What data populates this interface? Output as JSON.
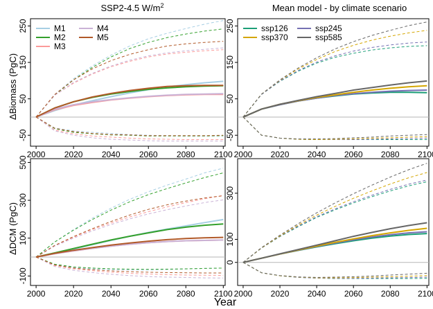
{
  "chart_data": [
    {
      "type": "line",
      "panel": "top-left",
      "title": "SSP2-4.5 W/m",
      "title_superscript": "2",
      "ylabel": "ΔBiomass (PgC)",
      "xlabel": "",
      "xlim": [
        1997,
        2101
      ],
      "ylim": [
        -80,
        270
      ],
      "xticks": [
        2000,
        2020,
        2040,
        2060,
        2080,
        2100
      ],
      "yticks": [
        -50,
        50,
        150,
        250
      ],
      "grid": false,
      "legend": "top-left, two columns",
      "x": [
        2000,
        2010,
        2020,
        2030,
        2040,
        2050,
        2060,
        2070,
        2080,
        2090,
        2100
      ],
      "series": [
        {
          "name": "M1",
          "color": "#a6cee3",
          "values": [
            0,
            18,
            33,
            45,
            56,
            66,
            75,
            83,
            89,
            94,
            98
          ],
          "upper": [
            0,
            62,
            105,
            140,
            170,
            195,
            215,
            230,
            243,
            255,
            265
          ],
          "lower": [
            0,
            -30,
            -38,
            -42,
            -45,
            -48,
            -50,
            -51,
            -52,
            -52,
            -52
          ]
        },
        {
          "name": "M2",
          "color": "#33a02c",
          "values": [
            0,
            25,
            42,
            54,
            63,
            70,
            76,
            80,
            83,
            85,
            86
          ],
          "upper": [
            0,
            60,
            102,
            136,
            165,
            188,
            205,
            218,
            228,
            236,
            242
          ],
          "lower": [
            0,
            -32,
            -42,
            -46,
            -49,
            -50,
            -52,
            -52,
            -52,
            -52,
            -51
          ]
        },
        {
          "name": "M3",
          "color": "#fb9a99",
          "values": [
            0,
            20,
            32,
            40,
            47,
            52,
            56,
            59,
            61,
            62,
            62
          ],
          "upper": [
            0,
            60,
            93,
            118,
            138,
            153,
            165,
            173,
            178,
            182,
            185
          ],
          "lower": [
            0,
            -36,
            -46,
            -52,
            -55,
            -58,
            -60,
            -61,
            -62,
            -62,
            -62
          ]
        },
        {
          "name": "M4",
          "color": "#cab2d6",
          "values": [
            0,
            22,
            34,
            42,
            48,
            53,
            57,
            60,
            62,
            63,
            64
          ],
          "upper": [
            0,
            60,
            95,
            120,
            140,
            156,
            168,
            176,
            182,
            186,
            190
          ],
          "lower": [
            0,
            -38,
            -50,
            -57,
            -61,
            -63,
            -65,
            -66,
            -66,
            -66,
            -66
          ]
        },
        {
          "name": "M5",
          "color": "#b15928",
          "values": [
            0,
            25,
            42,
            55,
            65,
            73,
            79,
            84,
            86,
            87,
            87
          ],
          "upper": [
            0,
            62,
            102,
            132,
            155,
            172,
            185,
            195,
            201,
            205,
            208
          ],
          "lower": [
            0,
            -31,
            -40,
            -45,
            -48,
            -49,
            -51,
            -51,
            -51,
            -51,
            -50
          ]
        }
      ]
    },
    {
      "type": "line",
      "panel": "top-right",
      "title": "Mean model - by climate scenario",
      "ylabel": "",
      "xlim": [
        1997,
        2101
      ],
      "ylim": [
        -80,
        270
      ],
      "xticks": [
        2000,
        2020,
        2040,
        2060,
        2080,
        2100
      ],
      "yticks": [
        -50,
        50,
        150,
        250
      ],
      "grid": false,
      "legend": "top-left, two columns",
      "x": [
        2000,
        2010,
        2020,
        2030,
        2040,
        2050,
        2060,
        2070,
        2080,
        2090,
        2100
      ],
      "series": [
        {
          "name": "ssp126",
          "color": "#1b9e77",
          "values": [
            0,
            22,
            34,
            44,
            52,
            58,
            63,
            66,
            68,
            68,
            67
          ],
          "upper": [
            0,
            62,
            98,
            126,
            148,
            164,
            175,
            184,
            190,
            194,
            196
          ],
          "lower": [
            0,
            -50,
            -58,
            -61,
            -62,
            -62,
            -62,
            -62,
            -62,
            -62,
            -62
          ]
        },
        {
          "name": "ssp245",
          "color": "#7570b3",
          "values": [
            0,
            22,
            34,
            44,
            52,
            59,
            64,
            68,
            71,
            73,
            74
          ],
          "upper": [
            0,
            62,
            99,
            128,
            151,
            168,
            181,
            191,
            198,
            203,
            206
          ],
          "lower": [
            0,
            -50,
            -58,
            -61,
            -62,
            -62,
            -62,
            -61,
            -60,
            -59,
            -58
          ]
        },
        {
          "name": "ssp370",
          "color": "#d4a600",
          "values": [
            0,
            22,
            35,
            45,
            54,
            61,
            68,
            74,
            79,
            83,
            86
          ],
          "upper": [
            0,
            63,
            101,
            132,
            158,
            180,
            197,
            211,
            222,
            231,
            238
          ],
          "lower": [
            0,
            -50,
            -58,
            -61,
            -62,
            -61,
            -60,
            -58,
            -57,
            -55,
            -54
          ]
        },
        {
          "name": "ssp585",
          "color": "#666666",
          "values": [
            0,
            22,
            35,
            46,
            56,
            65,
            74,
            81,
            88,
            94,
            99
          ],
          "upper": [
            0,
            63,
            102,
            135,
            163,
            187,
            207,
            224,
            238,
            251,
            261
          ],
          "lower": [
            0,
            -50,
            -58,
            -60,
            -60,
            -59,
            -57,
            -55,
            -52,
            -50,
            -48
          ]
        }
      ]
    },
    {
      "type": "line",
      "panel": "bottom-left",
      "ylabel": "ΔDCM (PgC)",
      "xlim": [
        1997,
        2101
      ],
      "ylim": [
        -150,
        520
      ],
      "xticks": [
        2000,
        2020,
        2040,
        2060,
        2080,
        2100
      ],
      "yticks": [
        -100,
        100,
        300,
        500
      ],
      "grid": false,
      "x": [
        2000,
        2010,
        2020,
        2030,
        2040,
        2050,
        2060,
        2070,
        2080,
        2090,
        2100
      ],
      "series": [
        {
          "name": "M1",
          "color": "#a6cee3",
          "values": [
            0,
            20,
            42,
            65,
            88,
            110,
            130,
            148,
            165,
            182,
            198
          ],
          "upper": [
            0,
            80,
            145,
            205,
            258,
            305,
            345,
            380,
            412,
            445,
            470
          ],
          "lower": [
            0,
            -40,
            -55,
            -62,
            -66,
            -68,
            -68,
            -66,
            -63,
            -60,
            -58
          ]
        },
        {
          "name": "M2",
          "color": "#33a02c",
          "values": [
            0,
            22,
            45,
            68,
            90,
            110,
            128,
            145,
            158,
            168,
            175
          ],
          "upper": [
            0,
            80,
            142,
            198,
            248,
            292,
            330,
            362,
            392,
            420,
            445
          ],
          "lower": [
            0,
            -38,
            -52,
            -58,
            -62,
            -64,
            -65,
            -64,
            -62,
            -60,
            -58
          ]
        },
        {
          "name": "M3",
          "color": "#fb9a99",
          "values": [
            0,
            18,
            32,
            46,
            58,
            68,
            76,
            82,
            86,
            88,
            90
          ],
          "upper": [
            0,
            60,
            105,
            145,
            180,
            212,
            240,
            265,
            288,
            308,
            326
          ],
          "lower": [
            0,
            -45,
            -62,
            -72,
            -80,
            -86,
            -90,
            -93,
            -95,
            -96,
            -97
          ]
        },
        {
          "name": "M4",
          "color": "#cab2d6",
          "values": [
            0,
            18,
            33,
            46,
            58,
            68,
            76,
            82,
            86,
            88,
            90
          ],
          "upper": [
            0,
            58,
            100,
            138,
            172,
            202,
            228,
            250,
            270,
            288,
            302
          ],
          "lower": [
            0,
            -50,
            -70,
            -82,
            -91,
            -98,
            -103,
            -106,
            -108,
            -110,
            -111
          ]
        },
        {
          "name": "M5",
          "color": "#b15928",
          "values": [
            0,
            20,
            36,
            50,
            63,
            74,
            84,
            92,
            98,
            102,
            104
          ],
          "upper": [
            0,
            62,
            108,
            150,
            188,
            222,
            252,
            276,
            296,
            312,
            324
          ],
          "lower": [
            0,
            -42,
            -58,
            -67,
            -73,
            -77,
            -80,
            -82,
            -83,
            -84,
            -84
          ]
        }
      ]
    },
    {
      "type": "line",
      "panel": "bottom-right",
      "ylabel": "",
      "xlim": [
        1997,
        2101
      ],
      "ylim": [
        -100,
        450
      ],
      "xticks": [
        2000,
        2020,
        2040,
        2060,
        2080,
        2100
      ],
      "yticks": [
        0,
        100,
        300
      ],
      "grid": false,
      "x": [
        2000,
        2010,
        2020,
        2030,
        2040,
        2050,
        2060,
        2070,
        2080,
        2090,
        2100
      ],
      "series": [
        {
          "name": "ssp126",
          "color": "#1b9e77",
          "values": [
            0,
            18,
            36,
            52,
            67,
            81,
            94,
            105,
            114,
            121,
            125
          ],
          "upper": [
            0,
            62,
            112,
            155,
            195,
            228,
            258,
            285,
            310,
            332,
            350
          ],
          "lower": [
            0,
            -45,
            -58,
            -65,
            -68,
            -70,
            -70,
            -70,
            -70,
            -70,
            -69
          ]
        },
        {
          "name": "ssp245",
          "color": "#7570b3",
          "values": [
            0,
            18,
            36,
            53,
            69,
            84,
            98,
            110,
            120,
            128,
            133
          ],
          "upper": [
            0,
            62,
            113,
            158,
            198,
            232,
            263,
            291,
            317,
            339,
            357
          ],
          "lower": [
            0,
            -45,
            -58,
            -65,
            -68,
            -69,
            -69,
            -68,
            -67,
            -66,
            -64
          ]
        },
        {
          "name": "ssp370",
          "color": "#d4a600",
          "values": [
            0,
            18,
            36,
            54,
            71,
            87,
            102,
            116,
            128,
            139,
            148
          ],
          "upper": [
            0,
            63,
            115,
            162,
            205,
            243,
            278,
            310,
            340,
            367,
            390
          ],
          "lower": [
            0,
            -45,
            -58,
            -64,
            -67,
            -67,
            -66,
            -64,
            -62,
            -60,
            -57
          ]
        },
        {
          "name": "ssp585",
          "color": "#666666",
          "values": [
            0,
            18,
            37,
            56,
            75,
            94,
            113,
            130,
            146,
            160,
            172
          ],
          "upper": [
            0,
            64,
            118,
            168,
            215,
            258,
            298,
            335,
            370,
            402,
            430
          ],
          "lower": [
            0,
            -45,
            -57,
            -63,
            -65,
            -64,
            -62,
            -59,
            -55,
            -51,
            -47
          ]
        }
      ]
    }
  ],
  "figure": {
    "xlabel": "Year"
  }
}
